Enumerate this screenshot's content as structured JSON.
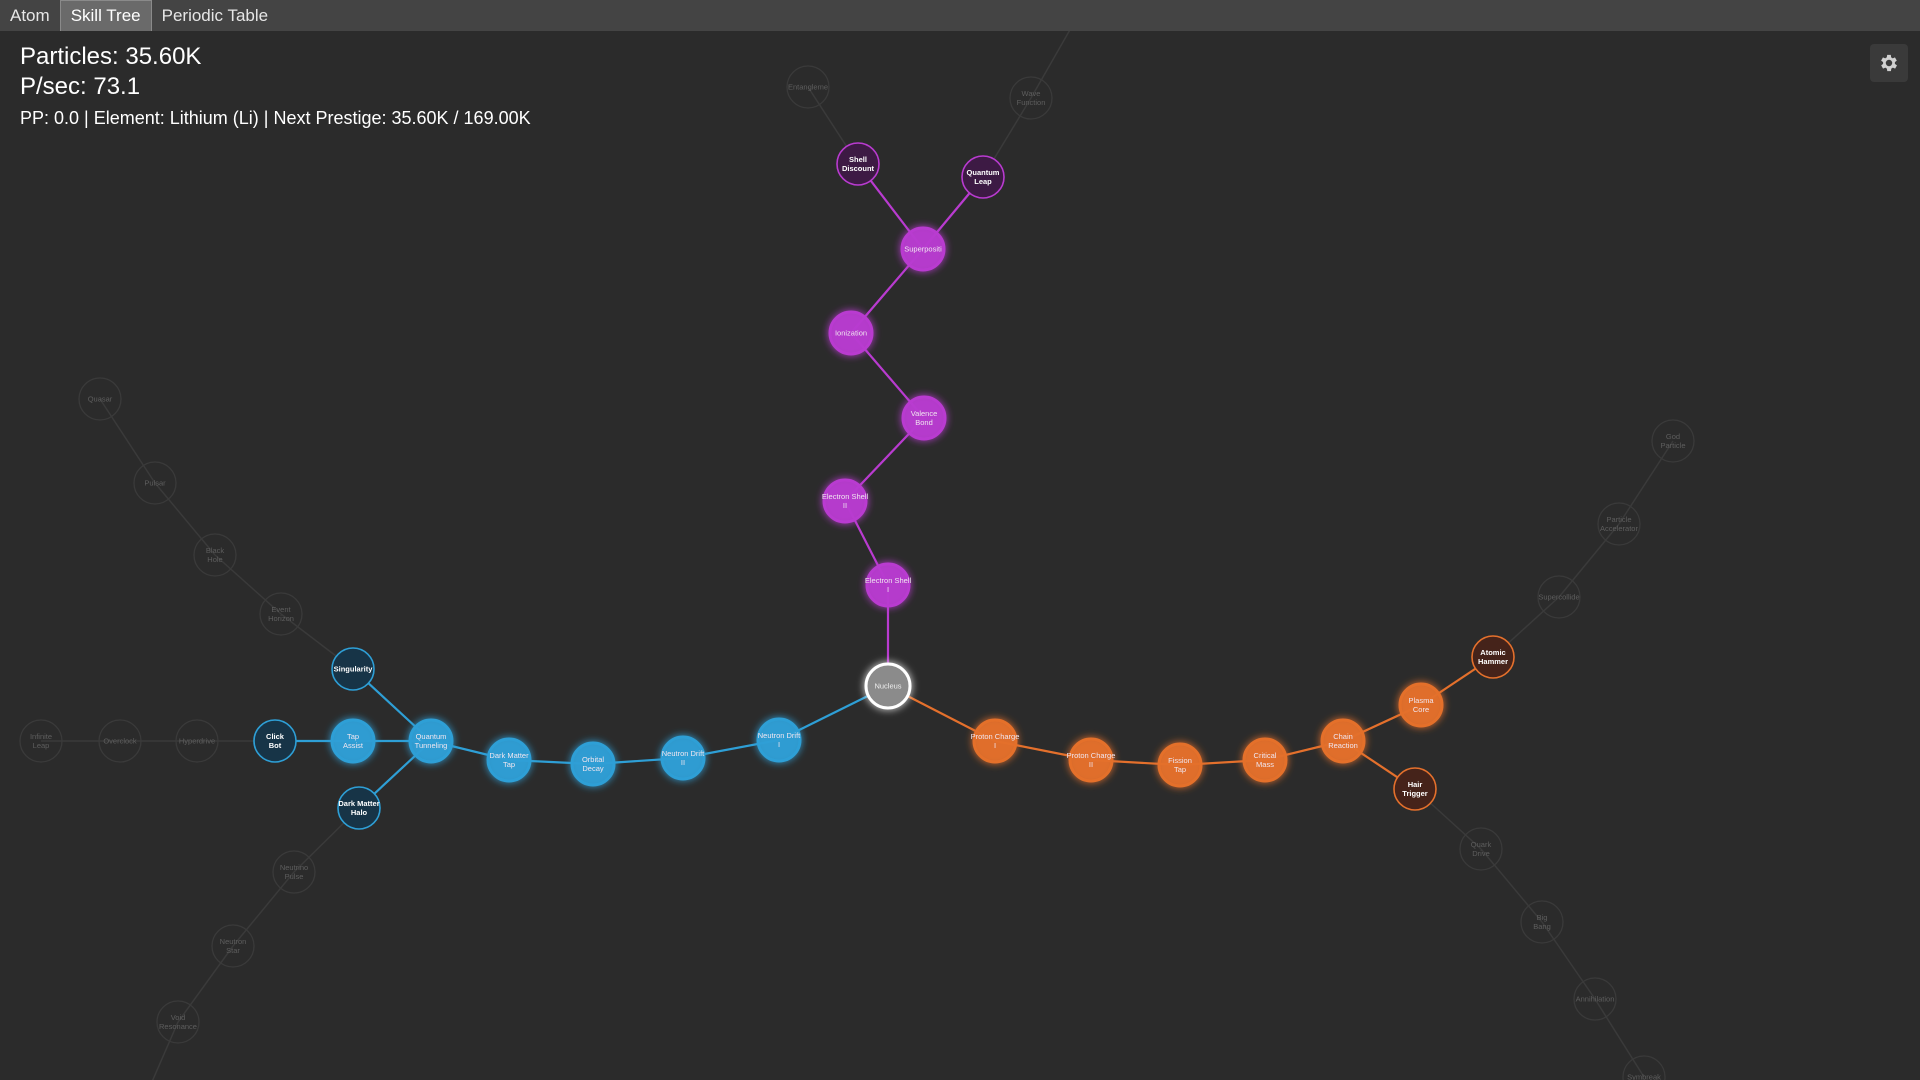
{
  "tabs": [
    {
      "label": "Atom",
      "active": false
    },
    {
      "label": "Skill Tree",
      "active": true
    },
    {
      "label": "Periodic Table",
      "active": false
    }
  ],
  "stats": {
    "particles": "Particles: 35.60K",
    "per_sec": "P/sec: 73.1",
    "info": "PP: 0.0 | Element: Lithium (Li) | Next Prestige: 35.60K / 169.00K"
  },
  "settings_icon": "gear-icon",
  "colors": {
    "background": "#2b2b2b",
    "purple": "#b93bd0",
    "blue": "#2e9fd6",
    "orange": "#e4702c",
    "locked": "#333333",
    "core": "#8a8a8a"
  },
  "skill_tree": {
    "nodes": [
      {
        "id": "nucleus",
        "label": "Nucleus",
        "branch": "core",
        "state": "owned"
      },
      {
        "id": "eshell1",
        "label": "Electron Shell I",
        "branch": "purple",
        "state": "owned"
      },
      {
        "id": "eshell2",
        "label": "Electron Shell II",
        "branch": "purple",
        "state": "owned"
      },
      {
        "id": "valence",
        "label": "Valence Bond",
        "branch": "purple",
        "state": "owned"
      },
      {
        "id": "ionization",
        "label": "Ionization",
        "branch": "purple",
        "state": "owned"
      },
      {
        "id": "superposit",
        "label": "Superpositi",
        "branch": "purple",
        "state": "owned"
      },
      {
        "id": "shelldisc",
        "label": "Shell Discount",
        "branch": "purple",
        "state": "available"
      },
      {
        "id": "qleap",
        "label": "Quantum Leap",
        "branch": "purple",
        "state": "available"
      },
      {
        "id": "entangle",
        "label": "Entangleme",
        "branch": "purple",
        "state": "locked"
      },
      {
        "id": "wavefn",
        "label": "Wave Function",
        "branch": "purple",
        "state": "locked"
      },
      {
        "id": "nd1",
        "label": "Neutron Drift I",
        "branch": "blue",
        "state": "owned"
      },
      {
        "id": "nd2",
        "label": "Neutron Drift II",
        "branch": "blue",
        "state": "owned"
      },
      {
        "id": "orbdecay",
        "label": "Orbital Decay",
        "branch": "blue",
        "state": "owned"
      },
      {
        "id": "dmtap",
        "label": "Dark Matter Tap",
        "branch": "blue",
        "state": "owned"
      },
      {
        "id": "qtunnel",
        "label": "Quantum Tunneling",
        "branch": "blue",
        "state": "owned"
      },
      {
        "id": "tapassist",
        "label": "Tap Assist",
        "branch": "blue",
        "state": "owned"
      },
      {
        "id": "singularity",
        "label": "Singularity",
        "branch": "blue",
        "state": "available"
      },
      {
        "id": "clickbot",
        "label": "Click Bot",
        "branch": "blue",
        "state": "available"
      },
      {
        "id": "dmhalo",
        "label": "Dark Matter Halo",
        "branch": "blue",
        "state": "available"
      },
      {
        "id": "eventhz",
        "label": "Event Horizon",
        "branch": "blue",
        "state": "locked"
      },
      {
        "id": "blackhole",
        "label": "Black Hole",
        "branch": "blue",
        "state": "locked"
      },
      {
        "id": "pulsar",
        "label": "Pulsar",
        "branch": "blue",
        "state": "locked"
      },
      {
        "id": "quasar",
        "label": "Quasar",
        "branch": "blue",
        "state": "locked"
      },
      {
        "id": "hyperdrive",
        "label": "Hyperdrive",
        "branch": "blue",
        "state": "locked"
      },
      {
        "id": "overclock",
        "label": "Overclock",
        "branch": "blue",
        "state": "locked"
      },
      {
        "id": "infleap",
        "label": "Infinite Leap",
        "branch": "blue",
        "state": "locked"
      },
      {
        "id": "npulse",
        "label": "Neutrino Pulse",
        "branch": "blue",
        "state": "locked"
      },
      {
        "id": "nstar",
        "label": "Neutron Star",
        "branch": "blue",
        "state": "locked"
      },
      {
        "id": "voidres",
        "label": "Void Resonance",
        "branch": "blue",
        "state": "locked"
      },
      {
        "id": "pc1",
        "label": "Proton Charge I",
        "branch": "orange",
        "state": "owned"
      },
      {
        "id": "pc2",
        "label": "Proton Charge II",
        "branch": "orange",
        "state": "owned"
      },
      {
        "id": "fissiontap",
        "label": "Fission Tap",
        "branch": "orange",
        "state": "owned"
      },
      {
        "id": "critmass",
        "label": "Critical Mass",
        "branch": "orange",
        "state": "owned"
      },
      {
        "id": "chainreact",
        "label": "Chain Reaction",
        "branch": "orange",
        "state": "owned"
      },
      {
        "id": "plasmacore",
        "label": "Plasma Core",
        "branch": "orange",
        "state": "owned"
      },
      {
        "id": "atomhammer",
        "label": "Atomic Hammer",
        "branch": "orange",
        "state": "available"
      },
      {
        "id": "hairtrig",
        "label": "Hair Trigger",
        "branch": "orange",
        "state": "available"
      },
      {
        "id": "supercollide",
        "label": "Supercollide",
        "branch": "orange",
        "state": "locked"
      },
      {
        "id": "partaccel",
        "label": "Particle Accelerator",
        "branch": "orange",
        "state": "locked"
      },
      {
        "id": "godparticle",
        "label": "God Particle",
        "branch": "orange",
        "state": "locked"
      },
      {
        "id": "quarkdrive",
        "label": "Quark Drive",
        "branch": "orange",
        "state": "locked"
      },
      {
        "id": "bigbang",
        "label": "Big Bang",
        "branch": "orange",
        "state": "locked"
      },
      {
        "id": "annihilation",
        "label": "Annihilation",
        "branch": "orange",
        "state": "locked"
      },
      {
        "id": "symbreak",
        "label": "Symbreak",
        "branch": "orange",
        "state": "locked"
      }
    ]
  }
}
